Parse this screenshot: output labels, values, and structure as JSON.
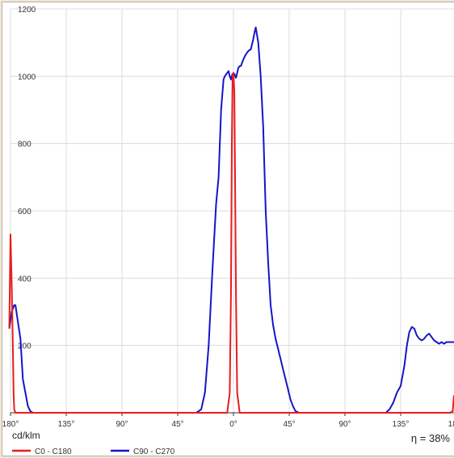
{
  "chart_data": {
    "type": "line",
    "unit": "cd/klm",
    "efficiency": "η = 38%",
    "ylim": [
      0,
      1200
    ],
    "y_ticks": [
      200,
      400,
      600,
      800,
      1000,
      1200
    ],
    "x_tick_labels": [
      "180°",
      "135°",
      "90°",
      "45°",
      "0°",
      "45°",
      "90°",
      "135°",
      "180°"
    ],
    "x_tick_angles": [
      -180,
      -135,
      -90,
      -45,
      0,
      45,
      90,
      135,
      180
    ],
    "grid": true,
    "legend_position": "bottom",
    "series": [
      {
        "name": "C0 - C180",
        "color": "#e81c1c",
        "x": [
          -181,
          -180,
          -179,
          -178,
          -177.5,
          -177,
          -176,
          -175,
          -150,
          -30,
          -5,
          -3,
          -2,
          -1.3,
          -0.7,
          0,
          0.7,
          1.3,
          2,
          3,
          5,
          30,
          150,
          175,
          177,
          178,
          179,
          180,
          181
        ],
        "y": [
          250,
          530,
          380,
          170,
          60,
          10,
          0,
          0,
          0,
          0,
          0,
          60,
          350,
          800,
          1000,
          1010,
          950,
          700,
          350,
          60,
          0,
          0,
          0,
          0,
          5,
          50,
          20,
          0,
          0
        ]
      },
      {
        "name": "C90 - C270",
        "color": "#1515c8",
        "x": [
          -181,
          -179,
          -177,
          -176,
          -174,
          -172,
          -170,
          -168,
          -166,
          -164,
          -162,
          -130,
          -30,
          -26,
          -23,
          -20,
          -17,
          -14,
          -12,
          -10,
          -8,
          -7,
          -6,
          -5,
          -4,
          -3,
          -2,
          -1,
          0,
          1,
          2,
          3,
          4,
          5,
          6,
          7,
          8,
          10,
          12,
          14,
          16,
          17,
          18,
          20,
          22,
          24,
          26,
          28,
          30,
          32,
          34,
          36,
          38,
          40,
          42,
          44,
          46,
          48,
          50,
          53,
          120,
          123,
          126,
          129,
          132,
          135,
          138,
          140,
          142,
          144,
          146,
          148,
          150,
          152,
          154,
          156,
          158,
          160,
          162,
          164,
          166,
          168,
          170,
          172,
          174,
          176,
          178,
          179,
          180,
          181
        ],
        "y": [
          250,
          300,
          320,
          320,
          270,
          220,
          100,
          60,
          20,
          5,
          0,
          0,
          0,
          10,
          60,
          200,
          420,
          620,
          700,
          900,
          990,
          1000,
          1005,
          1010,
          1015,
          1000,
          990,
          1005,
          1010,
          1005,
          995,
          1010,
          1025,
          1030,
          1030,
          1040,
          1050,
          1065,
          1075,
          1080,
          1110,
          1130,
          1145,
          1100,
          1000,
          850,
          600,
          450,
          320,
          260,
          220,
          190,
          160,
          130,
          100,
          70,
          40,
          20,
          5,
          0,
          0,
          0,
          10,
          30,
          60,
          80,
          140,
          200,
          240,
          255,
          250,
          230,
          220,
          215,
          220,
          230,
          235,
          225,
          215,
          210,
          205,
          210,
          205,
          210,
          210,
          210,
          210,
          210,
          210,
          210
        ]
      }
    ]
  }
}
